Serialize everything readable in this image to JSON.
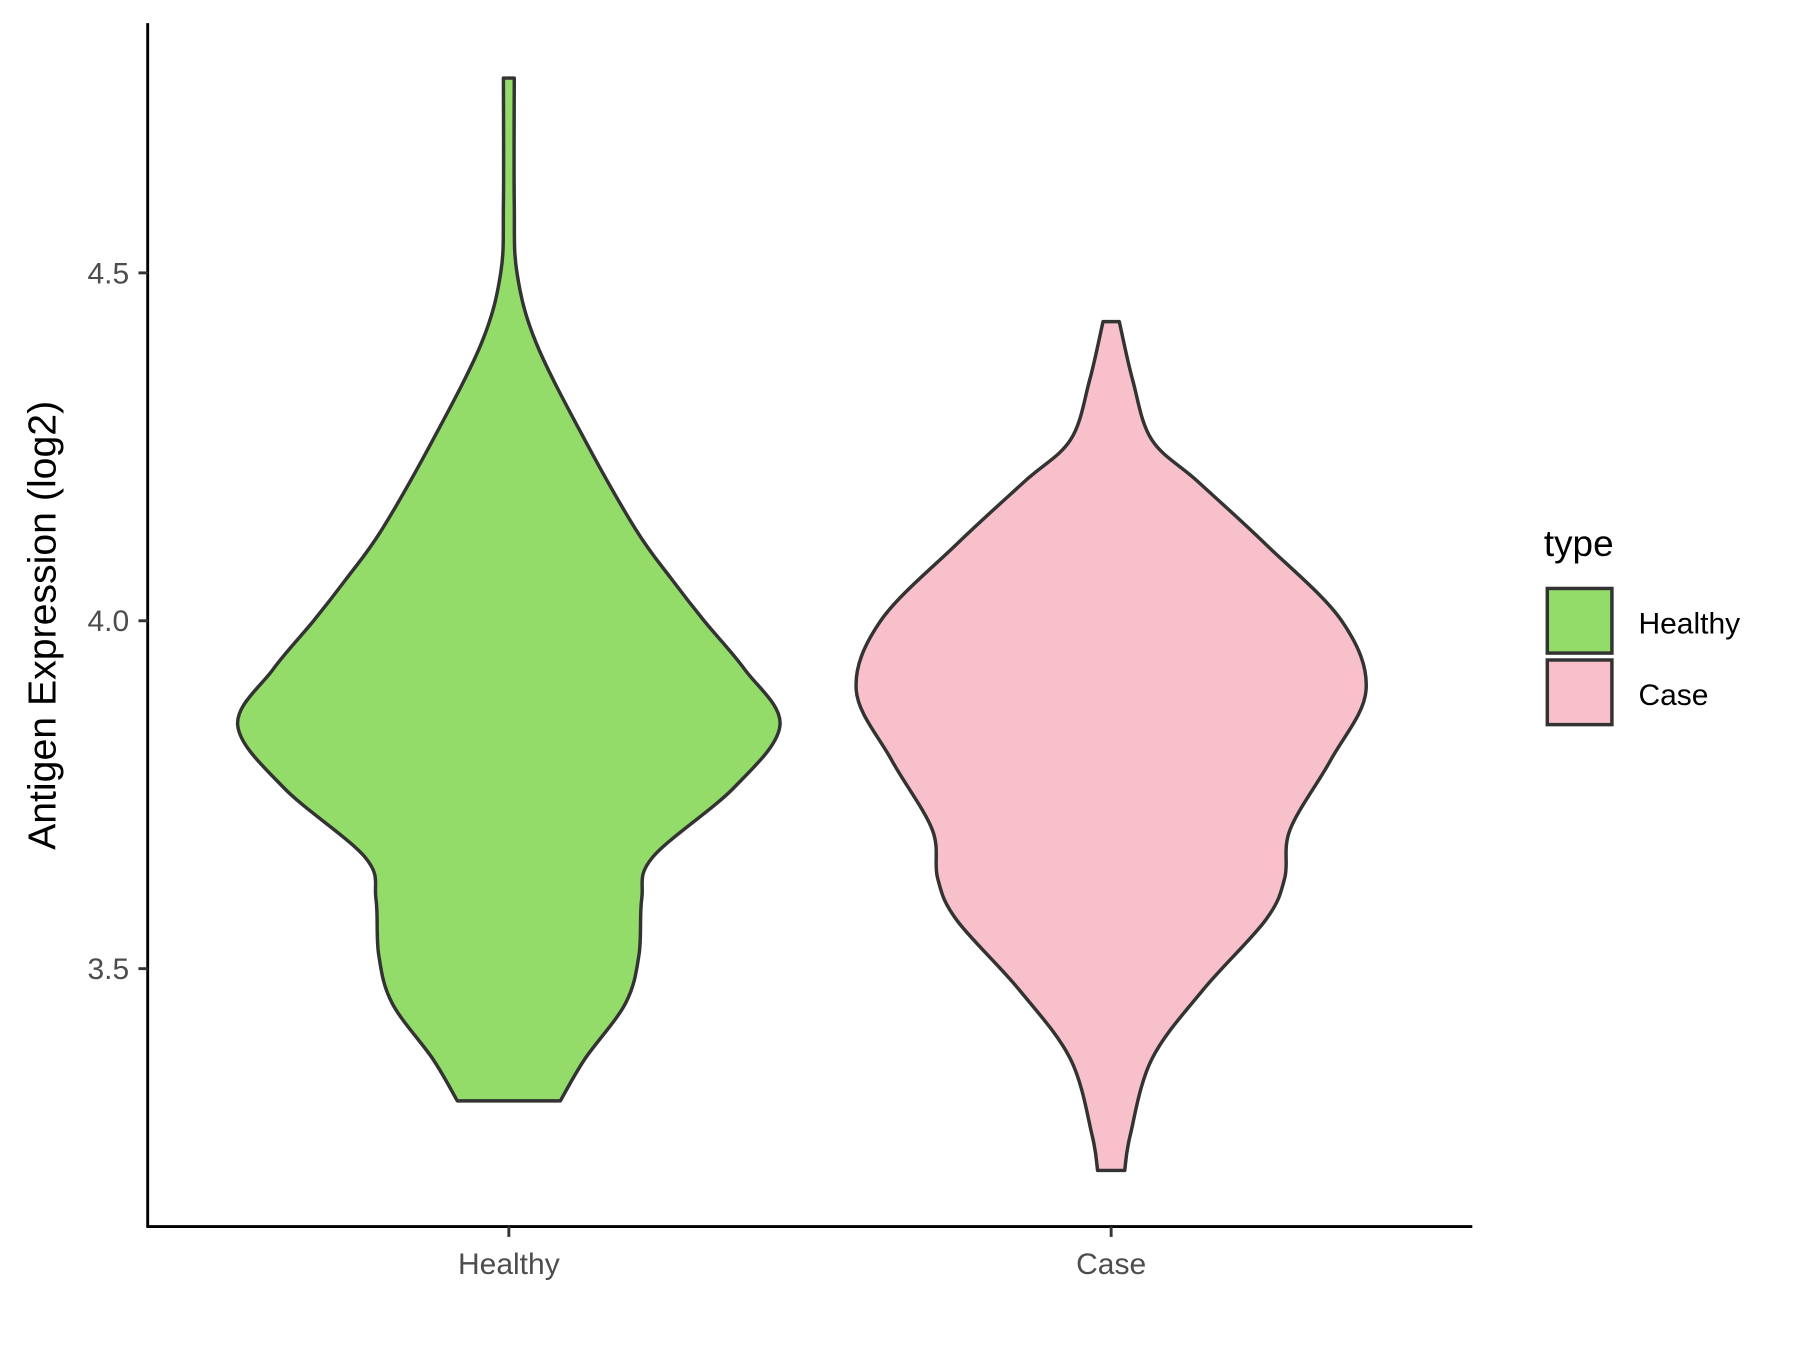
{
  "chart_data": {
    "type": "violin",
    "title": "",
    "xlabel": "",
    "ylabel": "Antigen Expression (log2)",
    "categories": [
      "Healthy",
      "Case"
    ],
    "yticks": [
      3.5,
      4.0,
      4.5
    ],
    "ytick_labels": [
      "3.5",
      "4.0",
      "4.5"
    ],
    "ylim": [
      3.15,
      4.84
    ],
    "grid": false,
    "legend": {
      "title": "type",
      "placement": "right",
      "entries": [
        "Healthy",
        "Case"
      ]
    },
    "series": [
      {
        "name": "Healthy",
        "color": "#93DC6A",
        "min": 3.31,
        "max": 4.78,
        "density_profile": [
          [
            3.31,
            0.19
          ],
          [
            3.37,
            0.28
          ],
          [
            3.45,
            0.43
          ],
          [
            3.52,
            0.48
          ],
          [
            3.6,
            0.49
          ],
          [
            3.66,
            0.53
          ],
          [
            3.76,
            0.83
          ],
          [
            3.85,
            1.0
          ],
          [
            3.93,
            0.87
          ],
          [
            4.0,
            0.72
          ],
          [
            4.06,
            0.6
          ],
          [
            4.13,
            0.47
          ],
          [
            4.26,
            0.28
          ],
          [
            4.4,
            0.1
          ],
          [
            4.5,
            0.03
          ],
          [
            4.6,
            0.02
          ],
          [
            4.78,
            0.02
          ]
        ]
      },
      {
        "name": "Case",
        "color": "#F8C0CB",
        "min": 3.21,
        "max": 4.43,
        "density_profile": [
          [
            3.21,
            0.05
          ],
          [
            3.26,
            0.07
          ],
          [
            3.37,
            0.15
          ],
          [
            3.47,
            0.34
          ],
          [
            3.57,
            0.57
          ],
          [
            3.63,
            0.64
          ],
          [
            3.7,
            0.66
          ],
          [
            3.8,
            0.81
          ],
          [
            3.9,
            0.94
          ],
          [
            4.0,
            0.85
          ],
          [
            4.11,
            0.57
          ],
          [
            4.2,
            0.32
          ],
          [
            4.26,
            0.15
          ],
          [
            4.345,
            0.08
          ],
          [
            4.43,
            0.03
          ]
        ]
      }
    ]
  }
}
